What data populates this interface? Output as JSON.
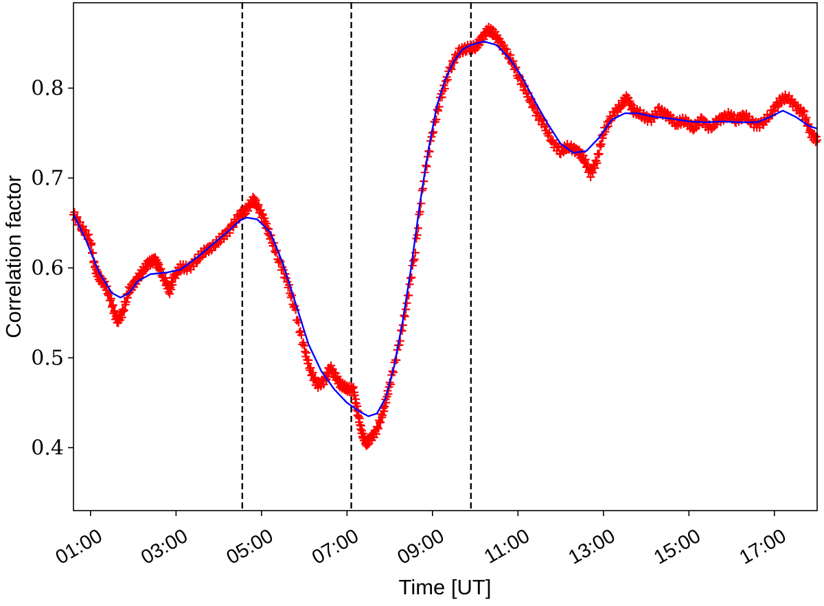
{
  "chart_data": {
    "type": "line",
    "title": "",
    "xlabel": "Time [UT]",
    "ylabel": "Correlation factor",
    "x_unit": "hours UT",
    "xlim": [
      0.6,
      18.0
    ],
    "ylim": [
      0.33,
      0.895
    ],
    "grid": false,
    "legend": "none",
    "x_ticks": [
      {
        "value": 1,
        "label": "01:00"
      },
      {
        "value": 3,
        "label": "03:00"
      },
      {
        "value": 5,
        "label": "05:00"
      },
      {
        "value": 7,
        "label": "07:00"
      },
      {
        "value": 9,
        "label": "09:00"
      },
      {
        "value": 11,
        "label": "11:00"
      },
      {
        "value": 13,
        "label": "13:00"
      },
      {
        "value": 15,
        "label": "15:00"
      },
      {
        "value": 17,
        "label": "17:00"
      }
    ],
    "y_ticks": [
      {
        "value": 0.4,
        "label": "0.4"
      },
      {
        "value": 0.5,
        "label": "0.5"
      },
      {
        "value": 0.6,
        "label": "0.6"
      },
      {
        "value": 0.7,
        "label": "0.7"
      },
      {
        "value": 0.8,
        "label": "0.8"
      }
    ],
    "vlines": [
      4.55,
      7.1,
      9.9
    ],
    "series": [
      {
        "style": "markers",
        "marker": "+",
        "color": "#ff0000",
        "points": [
          [
            0.6,
            0.66
          ],
          [
            0.8,
            0.645
          ],
          [
            1.0,
            0.63
          ],
          [
            1.1,
            0.6
          ],
          [
            1.2,
            0.59
          ],
          [
            1.35,
            0.58
          ],
          [
            1.5,
            0.56
          ],
          [
            1.62,
            0.54
          ],
          [
            1.75,
            0.55
          ],
          [
            1.9,
            0.575
          ],
          [
            2.05,
            0.585
          ],
          [
            2.2,
            0.595
          ],
          [
            2.35,
            0.605
          ],
          [
            2.5,
            0.61
          ],
          [
            2.6,
            0.6
          ],
          [
            2.75,
            0.585
          ],
          [
            2.85,
            0.575
          ],
          [
            2.95,
            0.59
          ],
          [
            3.1,
            0.6
          ],
          [
            3.3,
            0.6
          ],
          [
            3.5,
            0.61
          ],
          [
            3.7,
            0.62
          ],
          [
            3.9,
            0.625
          ],
          [
            4.1,
            0.635
          ],
          [
            4.3,
            0.645
          ],
          [
            4.5,
            0.66
          ],
          [
            4.65,
            0.665
          ],
          [
            4.8,
            0.675
          ],
          [
            4.9,
            0.67
          ],
          [
            5.05,
            0.655
          ],
          [
            5.2,
            0.635
          ],
          [
            5.4,
            0.61
          ],
          [
            5.6,
            0.585
          ],
          [
            5.8,
            0.55
          ],
          [
            6.0,
            0.51
          ],
          [
            6.15,
            0.485
          ],
          [
            6.3,
            0.47
          ],
          [
            6.5,
            0.475
          ],
          [
            6.6,
            0.49
          ],
          [
            6.72,
            0.48
          ],
          [
            6.85,
            0.47
          ],
          [
            7.0,
            0.465
          ],
          [
            7.15,
            0.465
          ],
          [
            7.25,
            0.44
          ],
          [
            7.35,
            0.415
          ],
          [
            7.45,
            0.405
          ],
          [
            7.55,
            0.41
          ],
          [
            7.7,
            0.42
          ],
          [
            7.85,
            0.44
          ],
          [
            8.0,
            0.47
          ],
          [
            8.2,
            0.51
          ],
          [
            8.4,
            0.56
          ],
          [
            8.6,
            0.62
          ],
          [
            8.8,
            0.7
          ],
          [
            9.0,
            0.75
          ],
          [
            9.2,
            0.79
          ],
          [
            9.4,
            0.82
          ],
          [
            9.6,
            0.84
          ],
          [
            9.8,
            0.845
          ],
          [
            10.0,
            0.845
          ],
          [
            10.15,
            0.855
          ],
          [
            10.3,
            0.865
          ],
          [
            10.45,
            0.86
          ],
          [
            10.6,
            0.85
          ],
          [
            10.8,
            0.835
          ],
          [
            11.0,
            0.815
          ],
          [
            11.2,
            0.795
          ],
          [
            11.4,
            0.775
          ],
          [
            11.6,
            0.76
          ],
          [
            11.8,
            0.74
          ],
          [
            12.0,
            0.73
          ],
          [
            12.2,
            0.735
          ],
          [
            12.4,
            0.73
          ],
          [
            12.55,
            0.72
          ],
          [
            12.7,
            0.705
          ],
          [
            12.85,
            0.72
          ],
          [
            13.0,
            0.75
          ],
          [
            13.2,
            0.77
          ],
          [
            13.4,
            0.78
          ],
          [
            13.55,
            0.79
          ],
          [
            13.7,
            0.775
          ],
          [
            13.9,
            0.77
          ],
          [
            14.1,
            0.765
          ],
          [
            14.3,
            0.775
          ],
          [
            14.5,
            0.77
          ],
          [
            14.7,
            0.76
          ],
          [
            14.9,
            0.765
          ],
          [
            15.1,
            0.755
          ],
          [
            15.3,
            0.765
          ],
          [
            15.5,
            0.755
          ],
          [
            15.7,
            0.765
          ],
          [
            15.9,
            0.77
          ],
          [
            16.1,
            0.765
          ],
          [
            16.3,
            0.77
          ],
          [
            16.5,
            0.76
          ],
          [
            16.7,
            0.76
          ],
          [
            16.9,
            0.77
          ],
          [
            17.1,
            0.785
          ],
          [
            17.3,
            0.79
          ],
          [
            17.5,
            0.78
          ],
          [
            17.7,
            0.77
          ],
          [
            17.85,
            0.75
          ],
          [
            18.0,
            0.742
          ]
        ]
      },
      {
        "style": "line",
        "color": "#0000ff",
        "points": [
          [
            0.6,
            0.66
          ],
          [
            0.9,
            0.63
          ],
          [
            1.2,
            0.595
          ],
          [
            1.5,
            0.572
          ],
          [
            1.7,
            0.567
          ],
          [
            1.9,
            0.572
          ],
          [
            2.1,
            0.585
          ],
          [
            2.4,
            0.593
          ],
          [
            2.8,
            0.595
          ],
          [
            3.1,
            0.598
          ],
          [
            3.5,
            0.612
          ],
          [
            3.9,
            0.628
          ],
          [
            4.2,
            0.64
          ],
          [
            4.5,
            0.653
          ],
          [
            4.65,
            0.656
          ],
          [
            4.9,
            0.654
          ],
          [
            5.2,
            0.64
          ],
          [
            5.5,
            0.605
          ],
          [
            5.8,
            0.56
          ],
          [
            6.1,
            0.515
          ],
          [
            6.4,
            0.485
          ],
          [
            6.7,
            0.465
          ],
          [
            7.0,
            0.45
          ],
          [
            7.3,
            0.44
          ],
          [
            7.5,
            0.435
          ],
          [
            7.7,
            0.438
          ],
          [
            7.9,
            0.455
          ],
          [
            8.1,
            0.49
          ],
          [
            8.3,
            0.54
          ],
          [
            8.5,
            0.6
          ],
          [
            8.7,
            0.67
          ],
          [
            8.9,
            0.73
          ],
          [
            9.1,
            0.78
          ],
          [
            9.3,
            0.81
          ],
          [
            9.5,
            0.83
          ],
          [
            9.7,
            0.843
          ],
          [
            9.9,
            0.848
          ],
          [
            10.2,
            0.852
          ],
          [
            10.5,
            0.848
          ],
          [
            10.8,
            0.833
          ],
          [
            11.1,
            0.812
          ],
          [
            11.4,
            0.785
          ],
          [
            11.7,
            0.76
          ],
          [
            12.0,
            0.738
          ],
          [
            12.3,
            0.728
          ],
          [
            12.6,
            0.73
          ],
          [
            12.9,
            0.745
          ],
          [
            13.2,
            0.765
          ],
          [
            13.5,
            0.772
          ],
          [
            13.8,
            0.772
          ],
          [
            14.2,
            0.768
          ],
          [
            14.6,
            0.766
          ],
          [
            15.0,
            0.763
          ],
          [
            15.4,
            0.762
          ],
          [
            15.8,
            0.763
          ],
          [
            16.2,
            0.762
          ],
          [
            16.6,
            0.762
          ],
          [
            16.9,
            0.768
          ],
          [
            17.2,
            0.775
          ],
          [
            17.5,
            0.768
          ],
          [
            17.8,
            0.758
          ],
          [
            18.0,
            0.755
          ]
        ]
      }
    ]
  }
}
